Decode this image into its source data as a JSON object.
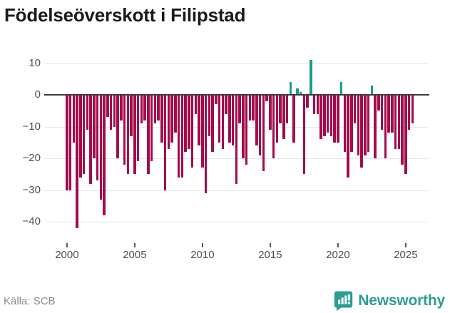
{
  "title": "Födelseöverskott i Filipstad",
  "source": "Källa: SCB",
  "logo": {
    "text": "Newsworthy"
  },
  "chart_data": {
    "type": "bar",
    "title": "Födelseöverskott i Filipstad",
    "x_unit": "quarter",
    "start_period": "2000 Q1",
    "end_period": "2025 Q3",
    "quarters_per_year": 4,
    "start_year": 2000,
    "values": [
      -30,
      -30,
      -15,
      -42,
      -26,
      -25,
      -11,
      -28,
      -20,
      -27,
      -33,
      -38,
      -7,
      -11,
      -10,
      -20,
      -8,
      -22,
      -25,
      -13,
      -25,
      -21,
      -9,
      -8,
      -25,
      -21,
      -9,
      -8,
      -15,
      -30,
      -17,
      -15,
      -12,
      -26,
      -26,
      -18,
      -17,
      -23,
      -6,
      -16,
      -23,
      -31,
      -13,
      -18,
      -3,
      -15,
      -17,
      -6,
      -15,
      -16,
      -28,
      -9,
      -20,
      -22,
      -8,
      -8,
      -16,
      -19,
      -24,
      -2,
      -11,
      -20,
      -15,
      -9,
      -14,
      -9,
      4,
      -15,
      2,
      1,
      -25,
      -4,
      11,
      -6,
      -6,
      -14,
      -13,
      -12,
      -13,
      -15,
      -15,
      4,
      -18,
      -26,
      -18,
      -9,
      -19,
      -23,
      -19,
      -18,
      3,
      -20,
      -5,
      -11,
      -20,
      -12,
      -12,
      -17,
      -17,
      -22,
      -25,
      -11,
      -9
    ],
    "xticks": [
      {
        "label": "2000",
        "year": 2000
      },
      {
        "label": "2005",
        "year": 2005
      },
      {
        "label": "2010",
        "year": 2010
      },
      {
        "label": "2015",
        "year": 2015
      },
      {
        "label": "2020",
        "year": 2020
      },
      {
        "label": "2025",
        "year": 2025
      }
    ],
    "yticks": [
      {
        "label": "10",
        "value": 10
      },
      {
        "label": "0",
        "value": 0
      },
      {
        "label": "−10",
        "value": -10
      },
      {
        "label": "−20",
        "value": -20
      },
      {
        "label": "−30",
        "value": -30
      },
      {
        "label": "−40",
        "value": -40
      }
    ],
    "ylim": [
      -45,
      14
    ],
    "grid": true,
    "legend": "none",
    "colors": {
      "negative": "#a30b4b",
      "positive": "#1a9c90",
      "zero_line": "#3d3d3d",
      "grid_line": "#e6e6e6",
      "brand_teal": "#2d9d92"
    }
  }
}
